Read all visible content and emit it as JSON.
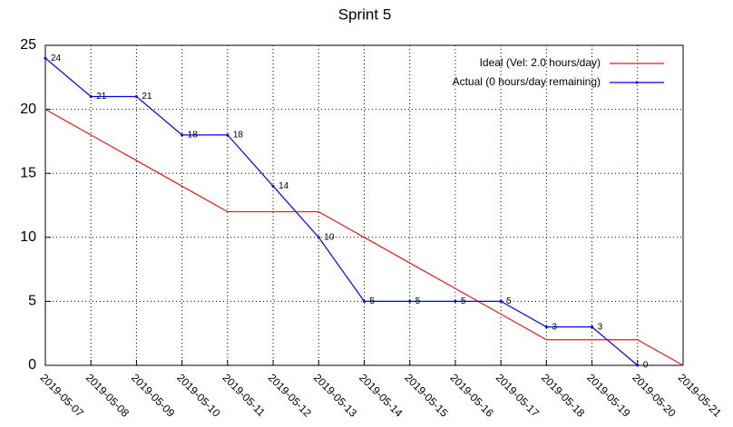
{
  "chart_data": {
    "type": "line",
    "title": "Sprint 5",
    "categories": [
      "2019-05-07",
      "2019-05-08",
      "2019-05-09",
      "2019-05-10",
      "2019-05-11",
      "2019-05-12",
      "2019-05-13",
      "2019-05-14",
      "2019-05-15",
      "2019-05-16",
      "2019-05-17",
      "2019-05-18",
      "2019-05-19",
      "2019-05-20",
      "2019-05-21"
    ],
    "series": [
      {
        "name": "Ideal (Vel: 2.0 hours/day)",
        "color": "#e41a1c",
        "values": [
          20,
          18,
          16,
          14,
          12,
          12,
          12,
          10,
          8,
          6,
          4,
          2,
          2,
          2,
          0
        ]
      },
      {
        "name": "Actual (0 hours/day remaining)",
        "color": "#0000ff",
        "values": [
          24,
          21,
          21,
          18,
          18,
          14,
          10,
          5,
          5,
          5,
          5,
          3,
          3,
          0,
          null
        ],
        "data_labels": true,
        "markers": true
      }
    ],
    "ylim": [
      0,
      25
    ],
    "yticks": [
      0,
      5,
      10,
      15,
      20,
      25
    ],
    "grid": true,
    "legend": "top-right"
  }
}
